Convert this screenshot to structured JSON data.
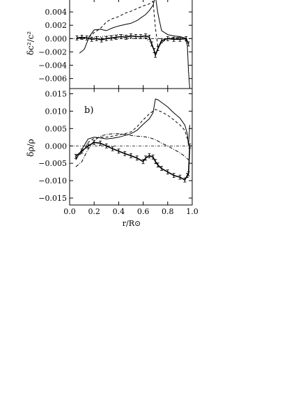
{
  "chart_data": [
    {
      "type": "line",
      "panel_label": "",
      "ylabel": "δc²/c²",
      "xlim": [
        0.0,
        1.0
      ],
      "ylim": [
        -0.0075,
        0.006
      ],
      "yticks": [
        -0.006,
        -0.004,
        -0.002,
        0.0,
        0.002,
        0.004
      ],
      "ytick_labels": [
        "−0.006",
        "−0.004",
        "−0.002",
        "0.000",
        "0.002",
        "0.004"
      ],
      "zero_line": true,
      "series": [
        {
          "style": "solid",
          "x": [
            0.08,
            0.12,
            0.16,
            0.2,
            0.25,
            0.3,
            0.35,
            0.4,
            0.45,
            0.5,
            0.55,
            0.58,
            0.62,
            0.65,
            0.68,
            0.7,
            0.72,
            0.75,
            0.8,
            0.85,
            0.9,
            0.94,
            0.96,
            0.97,
            0.98
          ],
          "y": [
            -0.0022,
            -0.0016,
            0.0003,
            0.0013,
            0.0014,
            0.0012,
            0.0016,
            0.0019,
            0.0021,
            0.0023,
            0.0027,
            0.0031,
            0.0036,
            0.0042,
            0.005,
            0.0063,
            0.0038,
            0.0012,
            0.0006,
            0.0004,
            0.0003,
            0.0001,
            -0.001,
            -0.005,
            -0.0075
          ]
        },
        {
          "style": "dashed",
          "x": [
            0.08,
            0.15,
            0.2,
            0.25,
            0.3,
            0.35,
            0.4,
            0.45,
            0.5,
            0.55,
            0.6,
            0.65,
            0.68,
            0.7,
            0.72,
            0.75,
            0.8,
            0.9,
            0.95,
            0.97
          ],
          "y": [
            0.0,
            0.0001,
            0.0009,
            0.0015,
            0.0025,
            0.003,
            0.0033,
            0.0038,
            0.0041,
            0.0045,
            0.0049,
            0.0052,
            0.0056,
            0.0016,
            -0.0012,
            -0.0006,
            0.0,
            0.0002,
            0.0001,
            -0.0008
          ]
        },
        {
          "style": "dotted",
          "x": [
            0.08,
            0.15,
            0.2,
            0.3,
            0.4,
            0.5,
            0.6,
            0.65,
            0.68,
            0.7,
            0.72,
            0.75,
            0.8,
            0.9,
            0.95,
            0.97
          ],
          "y": [
            0.0,
            0.0001,
            0.0002,
            0.0004,
            0.0006,
            0.0004,
            0.0002,
            -0.0004,
            -0.0014,
            -0.0022,
            -0.0016,
            -0.0006,
            0.0001,
            0.0001,
            0.0,
            -0.0006
          ]
        },
        {
          "style": "errorbar",
          "x": [
            0.06,
            0.1,
            0.14,
            0.18,
            0.22,
            0.26,
            0.3,
            0.34,
            0.38,
            0.42,
            0.46,
            0.5,
            0.54,
            0.58,
            0.62,
            0.65,
            0.67,
            0.69,
            0.7,
            0.72,
            0.75,
            0.8,
            0.85,
            0.9,
            0.95,
            0.97
          ],
          "y": [
            0.0001,
            0.0002,
            0.0001,
            -0.0001,
            0.0,
            -0.0002,
            0.0,
            0.0001,
            0.0002,
            0.0003,
            0.0002,
            0.0004,
            0.0003,
            0.0003,
            0.0004,
            0.0002,
            -0.0008,
            -0.0018,
            -0.0025,
            -0.0015,
            -0.0003,
            0.0,
            -0.0001,
            -0.0001,
            0.0,
            -0.0008
          ]
        }
      ]
    },
    {
      "type": "line",
      "panel_label": "b)",
      "ylabel": "δρ/ρ",
      "xlabel": "r/R⊙",
      "xlim": [
        0.0,
        1.0
      ],
      "ylim": [
        -0.017,
        0.0165
      ],
      "xticks": [
        0.0,
        0.2,
        0.4,
        0.6,
        0.8,
        1.0
      ],
      "xtick_labels": [
        "0.0",
        "0.2",
        "0.4",
        "0.6",
        "0.8",
        "1.0"
      ],
      "yticks": [
        -0.015,
        -0.01,
        -0.005,
        0.0,
        0.005,
        0.01,
        0.015
      ],
      "ytick_labels": [
        "−0.015",
        "−0.010",
        "−0.005",
        "0.000",
        "0.005",
        "0.010",
        "0.015"
      ],
      "zero_line": true,
      "series": [
        {
          "style": "solid",
          "x": [
            0.05,
            0.1,
            0.15,
            0.2,
            0.25,
            0.3,
            0.35,
            0.4,
            0.45,
            0.5,
            0.55,
            0.6,
            0.65,
            0.68,
            0.7,
            0.72,
            0.75,
            0.8,
            0.85,
            0.9,
            0.94,
            0.96,
            0.97,
            0.98
          ],
          "y": [
            -0.004,
            -0.001,
            0.002,
            0.0025,
            0.0023,
            0.002,
            0.0022,
            0.0025,
            0.003,
            0.0035,
            0.0045,
            0.0062,
            0.0078,
            0.0095,
            0.0135,
            0.0133,
            0.0125,
            0.0112,
            0.0095,
            0.008,
            0.006,
            0.0035,
            0.0,
            0.006
          ]
        },
        {
          "style": "dashed",
          "x": [
            0.05,
            0.1,
            0.15,
            0.2,
            0.25,
            0.3,
            0.35,
            0.4,
            0.45,
            0.5,
            0.55,
            0.6,
            0.65,
            0.7,
            0.75,
            0.8,
            0.85,
            0.9,
            0.94,
            0.97
          ],
          "y": [
            -0.0035,
            -0.002,
            0.001,
            0.0022,
            0.0025,
            0.0025,
            0.0028,
            0.0032,
            0.0035,
            0.004,
            0.0055,
            0.0075,
            0.0092,
            0.0105,
            0.0098,
            0.0088,
            0.0075,
            0.006,
            0.0045,
            0.001
          ]
        },
        {
          "style": "dashdot",
          "x": [
            0.05,
            0.1,
            0.15,
            0.2,
            0.25,
            0.3,
            0.35,
            0.4,
            0.45,
            0.5,
            0.55,
            0.6,
            0.65,
            0.7,
            0.75,
            0.8,
            0.85,
            0.9,
            0.94,
            0.97
          ],
          "y": [
            -0.006,
            -0.0045,
            -0.001,
            0.0015,
            0.0028,
            0.0033,
            0.0035,
            0.0035,
            0.0033,
            0.003,
            0.0028,
            0.0027,
            0.0024,
            0.0018,
            0.0008,
            0.0,
            -0.001,
            -0.002,
            -0.003,
            -0.004
          ]
        },
        {
          "style": "errorbar",
          "x": [
            0.05,
            0.1,
            0.15,
            0.2,
            0.25,
            0.3,
            0.35,
            0.4,
            0.45,
            0.5,
            0.55,
            0.6,
            0.62,
            0.65,
            0.68,
            0.7,
            0.72,
            0.75,
            0.8,
            0.85,
            0.9,
            0.94,
            0.96,
            0.97,
            0.98
          ],
          "y": [
            -0.003,
            -0.0015,
            0.0,
            0.001,
            0.0008,
            0.0,
            -0.0008,
            -0.0015,
            -0.0022,
            -0.0028,
            -0.0035,
            -0.0045,
            -0.0035,
            -0.0028,
            -0.0032,
            -0.0045,
            -0.0055,
            -0.0065,
            -0.0075,
            -0.0085,
            -0.009,
            -0.0098,
            -0.0085,
            -0.008,
            0.0
          ]
        }
      ]
    }
  ]
}
